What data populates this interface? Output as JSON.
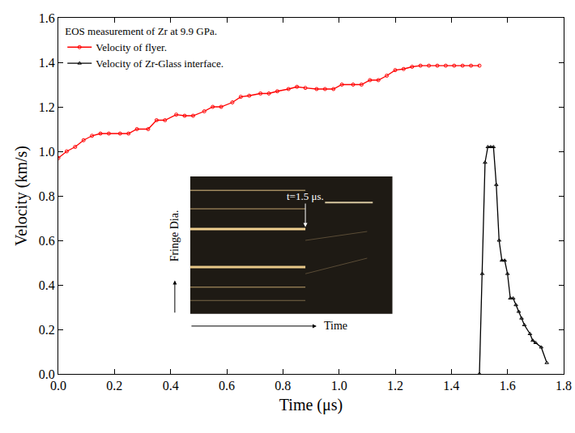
{
  "chart_data": {
    "type": "line",
    "title": "EOS measurement of Zr at 9.9 GPa.",
    "x_label": "Time (μs)",
    "y_label": "Velocity (km/s)",
    "annotations": [
      "t=1.5 μs.",
      "Fringe Dia.",
      "Time"
    ],
    "series": [
      {
        "name": "Velocity of flyer.",
        "color": "#ff0000",
        "marker": "circle-open",
        "line_style": "solid",
        "x": [
          0.0,
          0.03,
          0.06,
          0.09,
          0.12,
          0.15,
          0.18,
          0.22,
          0.25,
          0.28,
          0.32,
          0.35,
          0.38,
          0.42,
          0.45,
          0.48,
          0.52,
          0.55,
          0.58,
          0.62,
          0.65,
          0.68,
          0.72,
          0.75,
          0.78,
          0.82,
          0.85,
          0.88,
          0.92,
          0.95,
          0.98,
          1.01,
          1.05,
          1.08,
          1.11,
          1.14,
          1.17,
          1.2,
          1.23,
          1.26,
          1.29,
          1.32,
          1.35,
          1.38,
          1.41,
          1.44,
          1.47,
          1.5
        ],
        "values": [
          0.97,
          1.0,
          1.02,
          1.05,
          1.07,
          1.08,
          1.08,
          1.08,
          1.08,
          1.1,
          1.1,
          1.14,
          1.14,
          1.165,
          1.16,
          1.16,
          1.18,
          1.2,
          1.2,
          1.22,
          1.245,
          1.25,
          1.26,
          1.26,
          1.27,
          1.28,
          1.29,
          1.285,
          1.28,
          1.28,
          1.28,
          1.3,
          1.3,
          1.3,
          1.32,
          1.32,
          1.34,
          1.365,
          1.37,
          1.38,
          1.385,
          1.385,
          1.385,
          1.385,
          1.385,
          1.385,
          1.385,
          1.385
        ]
      },
      {
        "name": "Velocity of Zr-Glass interface.",
        "color": "#000000",
        "marker": "triangle-up-open",
        "line_style": "solid",
        "x": [
          1.5,
          1.51,
          1.52,
          1.53,
          1.54,
          1.55,
          1.56,
          1.57,
          1.58,
          1.59,
          1.6,
          1.61,
          1.62,
          1.63,
          1.64,
          1.65,
          1.66,
          1.68,
          1.69,
          1.7,
          1.72,
          1.74
        ],
        "values": [
          0.0,
          0.45,
          0.95,
          1.02,
          1.02,
          1.02,
          0.85,
          0.6,
          0.51,
          0.51,
          0.45,
          0.34,
          0.34,
          0.31,
          0.28,
          0.25,
          0.22,
          0.18,
          0.15,
          0.14,
          0.12,
          0.05
        ]
      }
    ],
    "xlim": [
      0,
      1.8
    ],
    "xticks": [
      {
        "value": 0,
        "label": "0.0"
      },
      0.2,
      0.4,
      0.6,
      0.8,
      {
        "value": 1,
        "label": "1.0"
      },
      1.2,
      1.4,
      1.6,
      1.8
    ],
    "ylim": [
      0,
      1.6
    ],
    "yticks": [
      {
        "value": 0,
        "label": "0.0"
      },
      0.2,
      0.4,
      0.6,
      0.8,
      {
        "value": 1,
        "label": "1.0"
      },
      1.2,
      1.4,
      1.6
    ],
    "grid": false,
    "legend": "top left"
  }
}
